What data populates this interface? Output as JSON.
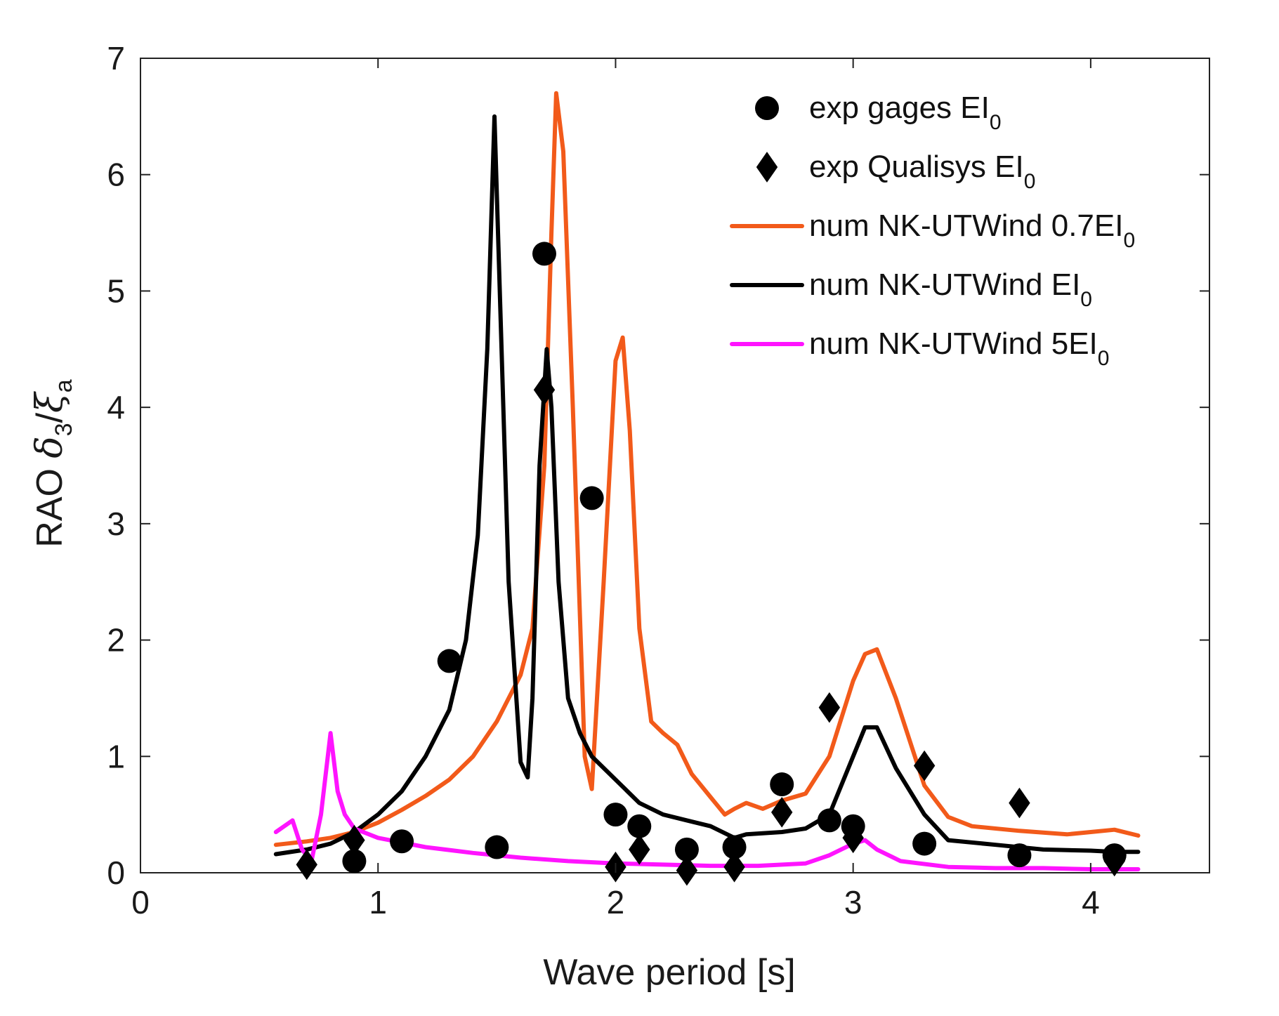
{
  "chart_data": {
    "type": "line",
    "title": "",
    "xlabel": "Wave period [s]",
    "ylabel": {
      "prefix": "RAO ",
      "numerator_symbol": "δ",
      "numerator_subscript": "3",
      "separator": "/",
      "denominator_symbol": "ξ",
      "denominator_subscript": "a"
    },
    "xlim": [
      0,
      4.5
    ],
    "ylim": [
      0,
      7
    ],
    "xticks": [
      0,
      1,
      2,
      3,
      4
    ],
    "yticks": [
      0,
      1,
      2,
      3,
      4,
      5,
      6,
      7
    ],
    "xtick_labels": [
      "0",
      "1",
      "2",
      "3",
      "4"
    ],
    "ytick_labels": [
      "0",
      "1",
      "2",
      "3",
      "4",
      "5",
      "6",
      "7"
    ],
    "grid": false,
    "legend_position": "top-right",
    "series": [
      {
        "name": "num NK-UTWind 0.7EI0",
        "legend_label": "num NK-UTWind 0.7EI",
        "legend_subscript": "0",
        "kind": "line",
        "color": "#f25a1a",
        "x": [
          0.57,
          0.7,
          0.8,
          0.9,
          1.0,
          1.1,
          1.2,
          1.3,
          1.4,
          1.5,
          1.6,
          1.65,
          1.7,
          1.73,
          1.75,
          1.78,
          1.82,
          1.87,
          1.9,
          1.95,
          2.0,
          2.03,
          2.06,
          2.1,
          2.15,
          2.2,
          2.26,
          2.32,
          2.4,
          2.46,
          2.5,
          2.55,
          2.62,
          2.7,
          2.8,
          2.9,
          3.0,
          3.05,
          3.1,
          3.18,
          3.3,
          3.4,
          3.5,
          3.7,
          3.9,
          4.0,
          4.1,
          4.2
        ],
        "y": [
          0.24,
          0.27,
          0.3,
          0.35,
          0.43,
          0.54,
          0.66,
          0.8,
          1.0,
          1.3,
          1.7,
          2.1,
          3.5,
          5.5,
          6.7,
          6.2,
          4.0,
          1.0,
          0.72,
          2.5,
          4.4,
          4.6,
          3.8,
          2.1,
          1.3,
          1.2,
          1.1,
          0.85,
          0.65,
          0.5,
          0.55,
          0.6,
          0.55,
          0.62,
          0.68,
          1.0,
          1.65,
          1.88,
          1.92,
          1.5,
          0.75,
          0.48,
          0.4,
          0.36,
          0.33,
          0.35,
          0.37,
          0.32
        ]
      },
      {
        "name": "num NK-UTWind EI0",
        "legend_label": "num NK-UTWind EI",
        "legend_subscript": "0",
        "kind": "line",
        "color": "#000000",
        "x": [
          0.57,
          0.7,
          0.8,
          0.9,
          1.0,
          1.1,
          1.2,
          1.3,
          1.37,
          1.42,
          1.46,
          1.49,
          1.52,
          1.55,
          1.6,
          1.63,
          1.65,
          1.68,
          1.71,
          1.73,
          1.76,
          1.8,
          1.85,
          1.9,
          2.0,
          2.1,
          2.2,
          2.3,
          2.4,
          2.5,
          2.55,
          2.7,
          2.8,
          2.9,
          3.0,
          3.05,
          3.1,
          3.18,
          3.3,
          3.4,
          3.6,
          3.8,
          4.0,
          4.1,
          4.2
        ],
        "y": [
          0.16,
          0.2,
          0.25,
          0.35,
          0.5,
          0.7,
          1.0,
          1.4,
          2.0,
          2.9,
          4.5,
          6.5,
          4.5,
          2.5,
          0.95,
          0.82,
          1.5,
          3.5,
          4.5,
          4.0,
          2.5,
          1.5,
          1.2,
          1.0,
          0.8,
          0.6,
          0.5,
          0.45,
          0.4,
          0.3,
          0.33,
          0.35,
          0.38,
          0.5,
          1.0,
          1.25,
          1.25,
          0.9,
          0.5,
          0.28,
          0.24,
          0.2,
          0.19,
          0.18,
          0.18
        ]
      },
      {
        "name": "num NK-UTWind 5EI0",
        "legend_label": "num NK-UTWind 5EI",
        "legend_subscript": "0",
        "kind": "line",
        "color": "#ff14ff",
        "x": [
          0.57,
          0.64,
          0.68,
          0.72,
          0.76,
          0.8,
          0.83,
          0.86,
          0.9,
          1.0,
          1.2,
          1.4,
          1.6,
          1.8,
          2.0,
          2.2,
          2.4,
          2.6,
          2.8,
          2.9,
          3.0,
          3.05,
          3.1,
          3.2,
          3.4,
          3.6,
          3.8,
          4.0,
          4.2
        ],
        "y": [
          0.35,
          0.45,
          0.2,
          0.1,
          0.5,
          1.2,
          0.7,
          0.5,
          0.38,
          0.3,
          0.22,
          0.17,
          0.13,
          0.1,
          0.08,
          0.07,
          0.06,
          0.06,
          0.08,
          0.15,
          0.25,
          0.28,
          0.2,
          0.1,
          0.05,
          0.04,
          0.04,
          0.03,
          0.03
        ]
      },
      {
        "name": "exp gages EI0",
        "legend_label": "exp gages EI",
        "legend_subscript": "0",
        "kind": "marker",
        "marker": "circle",
        "color": "#000000",
        "x": [
          0.9,
          1.1,
          1.3,
          1.5,
          1.7,
          1.9,
          2.0,
          2.1,
          2.3,
          2.5,
          2.7,
          2.9,
          3.0,
          3.3,
          3.7,
          4.1
        ],
        "y": [
          0.1,
          0.27,
          1.82,
          0.22,
          5.32,
          3.22,
          0.5,
          0.4,
          0.2,
          0.22,
          0.76,
          0.45,
          0.4,
          0.25,
          0.15,
          0.15
        ]
      },
      {
        "name": "exp Qualisys EI0",
        "legend_label": "exp Qualisys EI",
        "legend_subscript": "0",
        "kind": "marker",
        "marker": "diamond",
        "color": "#000000",
        "x": [
          0.7,
          0.9,
          1.7,
          2.0,
          2.1,
          2.3,
          2.5,
          2.7,
          2.9,
          3.0,
          3.3,
          3.7,
          4.1
        ],
        "y": [
          0.07,
          0.28,
          4.15,
          0.05,
          0.2,
          0.02,
          0.05,
          0.52,
          1.42,
          0.3,
          0.92,
          0.6,
          0.1
        ]
      }
    ],
    "legend_order": [
      3,
      4,
      0,
      1,
      2
    ]
  }
}
